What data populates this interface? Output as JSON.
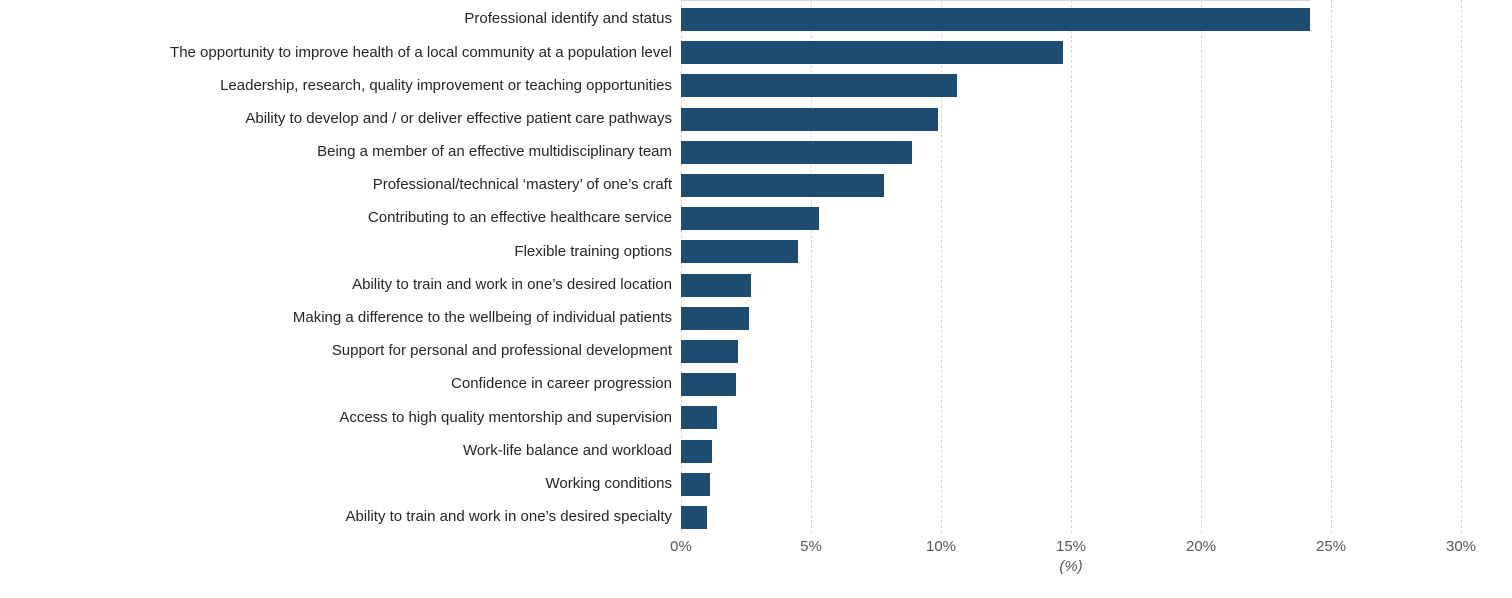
{
  "chart_data": {
    "type": "bar",
    "orientation": "horizontal",
    "title": "",
    "xlabel": "(%)",
    "ylabel": "",
    "xlim": [
      0,
      30
    ],
    "grid": "vertical-dashed",
    "legend": "none",
    "bar_color": "#1d4c70",
    "gridline_color": "#d8d8d8",
    "category_label_color": "#262626",
    "tick_label_color": "#595959",
    "x_ticks": [
      "0%",
      "5%",
      "10%",
      "15%",
      "20%",
      "25%",
      "30%"
    ],
    "x_tick_values": [
      0,
      5,
      10,
      15,
      20,
      25,
      30
    ],
    "categories": [
      "Professional identify and status",
      "The opportunity to improve health of a local community at a population level",
      "Leadership, research, quality improvement or teaching opportunities",
      "Ability to develop and / or deliver effective patient care pathways",
      "Being a member of an effective multidisciplinary team",
      "Professional/technical ‘mastery’ of one’s craft",
      "Contributing to an effective healthcare service",
      "Flexible training options",
      "Ability to train and work in one’s desired location",
      "Making a difference to the wellbeing of individual patients",
      "Support for personal and professional development",
      "Confidence in career progression",
      "Access to high quality mentorship and supervision",
      "Work-life balance and workload",
      "Working conditions",
      "Ability to train and work in one’s desired specialty"
    ],
    "values": [
      24.2,
      14.7,
      10.6,
      9.9,
      8.9,
      7.8,
      5.3,
      4.5,
      2.7,
      2.6,
      2.2,
      2.1,
      1.4,
      1.2,
      1.1,
      1.0
    ]
  }
}
